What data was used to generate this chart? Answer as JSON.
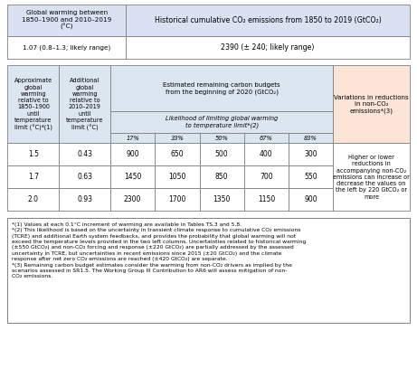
{
  "top_table": {
    "col1_header": "Global warming between\n1850–1900 and 2010–2019\n(°C)",
    "col2_header": "Historical cumulative CO₂ emissions from 1850 to 2019 (GtCO₂)",
    "col1_value": "1.07 (0.8–1.3; likely range)",
    "col2_value": "2390 (± 240; likely range)",
    "header_bg": "#d9e1f2",
    "value_bg": "#ffffff"
  },
  "main_table": {
    "col1_header": "Approximate\nglobal\nwarming\nrelative to\n1850–1900\nuntil\ntemperature\nlimit (°C)*(1)",
    "col2_header": "Additional\nglobal\nwarming\nrelative to\n2010–2019\nuntil\ntemperature\nlimit (°C)",
    "col_mid_top": "Estimated remaining carbon budgets\nfrom the beginning of 2020 (GtCO₂)",
    "col_mid_sub": "Likelihood of limiting global warming\nto temperature limit*(2)",
    "percentages": [
      "17%",
      "33%",
      "50%",
      "67%",
      "83%"
    ],
    "col6_header": "Variations in reductions\nin non-CO₂\nemissions*(3)",
    "col6_text": "Higher or lower\nreductions in\naccompanying non-CO₂\nemissions can increase or\ndecrease the values on\nthe left by 220 GtCO₂ or\nmore",
    "rows": [
      {
        "temp": "1.5",
        "add_temp": "0.43",
        "vals": [
          "900",
          "650",
          "500",
          "400",
          "300"
        ]
      },
      {
        "temp": "1.7",
        "add_temp": "0.63",
        "vals": [
          "1450",
          "1050",
          "850",
          "700",
          "550"
        ]
      },
      {
        "temp": "2.0",
        "add_temp": "0.93",
        "vals": [
          "2300",
          "1700",
          "1350",
          "1150",
          "900"
        ]
      }
    ],
    "header_bg": "#dce6f1",
    "col6_header_bg": "#fce4d6",
    "col6_body_bg": "#ffffff",
    "row_bg": "#ffffff"
  },
  "footnote_lines": [
    "*(1) Values at each 0.1°C increment of warming are available in Tables TS.3 and 5.8.",
    "*(2) This likelihood is based on the uncertainty in transient climate response to cumulative CO₂ emissions",
    "(TCRE) and additional Earth system feedbacks, and provides the probability that global warming will not",
    "exceed the temperature levels provided in the two left columns. Uncertainties related to historical warming",
    "(±550 GtCO₂) and non-CO₂ forcing and response (±220 GtCO₂) are partially addressed by the assessed",
    "uncertainty in TCRE, but uncertainties in recent emissions since 2015 (±20 GtCO₂) and the climate",
    "response after net zero CO₂ emissions are reached (±420 GtCO₂) are separate.",
    "*(3) Remaining carbon budget estimates consider the warming from non-CO₂ drivers as implied by the",
    "scenarios assessed in SR1.5. The Working Group III Contribution to AR6 will assess mitigation of non-",
    "CO₂ emissions."
  ],
  "border_color": "#808080",
  "text_color": "#000000",
  "fontsize": 5.2
}
